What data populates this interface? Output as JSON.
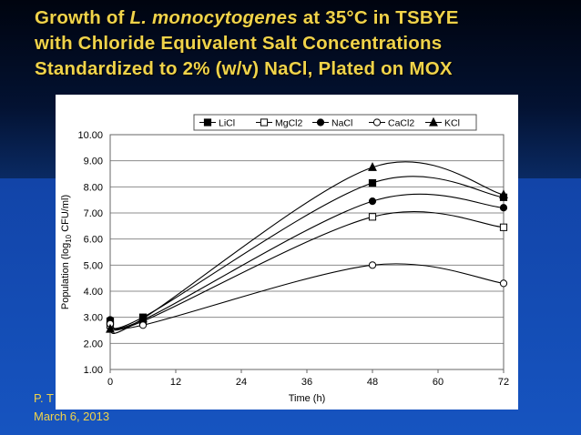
{
  "slide": {
    "title_parts": {
      "l1_a": "Growth of ",
      "l1_italic": "L. monocytogenes",
      "l1_b": " at 35°C in TSBYE",
      "l2": "with Chloride Equivalent Salt Concentrations",
      "l3": "Standardized to 2% (w/v) NaCl, Plated on MOX"
    },
    "footer_author": "P. T",
    "footer_date": "March 6, 2013"
  },
  "chart_data": {
    "type": "line",
    "xlabel": "Time (h)",
    "ylabel_prefix": "Population (log",
    "ylabel_sub": "10",
    "ylabel_suffix": " CFU/ml)",
    "x": [
      0,
      6,
      48,
      72
    ],
    "xlim": [
      0,
      72
    ],
    "ylim": [
      1.0,
      10.0
    ],
    "xticks": [
      0,
      12,
      24,
      36,
      48,
      60,
      72
    ],
    "yticks": [
      1.0,
      2.0,
      3.0,
      4.0,
      5.0,
      6.0,
      7.0,
      8.0,
      9.0,
      10.0
    ],
    "ytick_labels": [
      "1.00",
      "2.00",
      "3.00",
      "4.00",
      "5.00",
      "6.00",
      "7.00",
      "8.00",
      "9.00",
      "10.00"
    ],
    "grid": true,
    "legend_position": "top",
    "series": [
      {
        "name": "LiCl",
        "marker": "square-filled",
        "values": [
          2.85,
          3.0,
          8.15,
          7.6
        ]
      },
      {
        "name": "MgCl2",
        "marker": "square-open",
        "values": [
          2.7,
          2.85,
          6.85,
          6.45
        ]
      },
      {
        "name": "NaCl",
        "marker": "circle-filled",
        "values": [
          2.9,
          2.9,
          7.45,
          7.2
        ]
      },
      {
        "name": "CaCl2",
        "marker": "circle-open",
        "values": [
          2.75,
          2.7,
          5.0,
          4.3
        ]
      },
      {
        "name": "KCl",
        "marker": "triangle-filled",
        "values": [
          2.55,
          2.95,
          8.75,
          7.7
        ]
      }
    ]
  }
}
